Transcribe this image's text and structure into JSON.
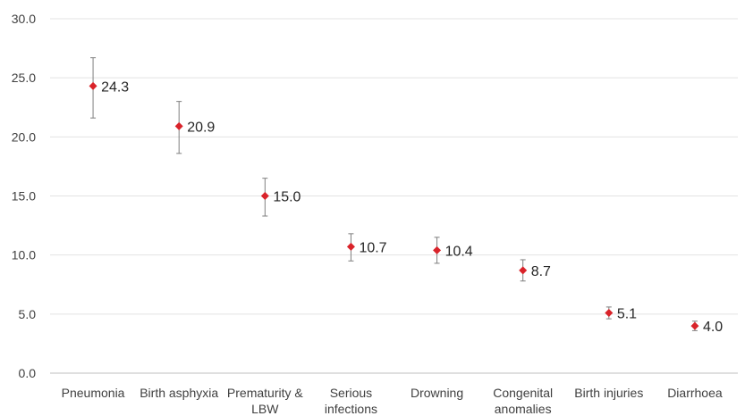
{
  "chart_data": {
    "type": "scatter",
    "categories": [
      [
        "Pneumonia"
      ],
      [
        "Birth asphyxia"
      ],
      [
        "Prematurity &",
        "LBW"
      ],
      [
        "Serious",
        "infections"
      ],
      [
        "Drowning"
      ],
      [
        "Congenital",
        "anomalies"
      ],
      [
        "Birth injuries"
      ],
      [
        "Diarrhoea"
      ]
    ],
    "values": [
      24.3,
      20.9,
      15.0,
      10.7,
      10.4,
      8.7,
      5.1,
      4.0
    ],
    "value_labels": [
      "24.3",
      "20.9",
      "15.0",
      "10.7",
      "10.4",
      "8.7",
      "5.1",
      "4.0"
    ],
    "error_low": [
      21.6,
      18.6,
      13.3,
      9.5,
      9.3,
      7.8,
      4.6,
      3.6
    ],
    "error_high": [
      26.7,
      23.0,
      16.5,
      11.8,
      11.5,
      9.6,
      5.6,
      4.4
    ],
    "y_ticks": [
      0,
      5,
      10,
      15,
      20,
      25,
      30
    ],
    "y_tick_labels": [
      "0.0",
      "5.0",
      "10.0",
      "15.0",
      "20.0",
      "25.0",
      "30.0"
    ],
    "ylim": [
      0,
      30
    ],
    "grid": true,
    "marker": "diamond",
    "colors": {
      "point": "#d9232a",
      "error_bar": "#7f7f7f",
      "grid": "#e3e3e3"
    }
  }
}
